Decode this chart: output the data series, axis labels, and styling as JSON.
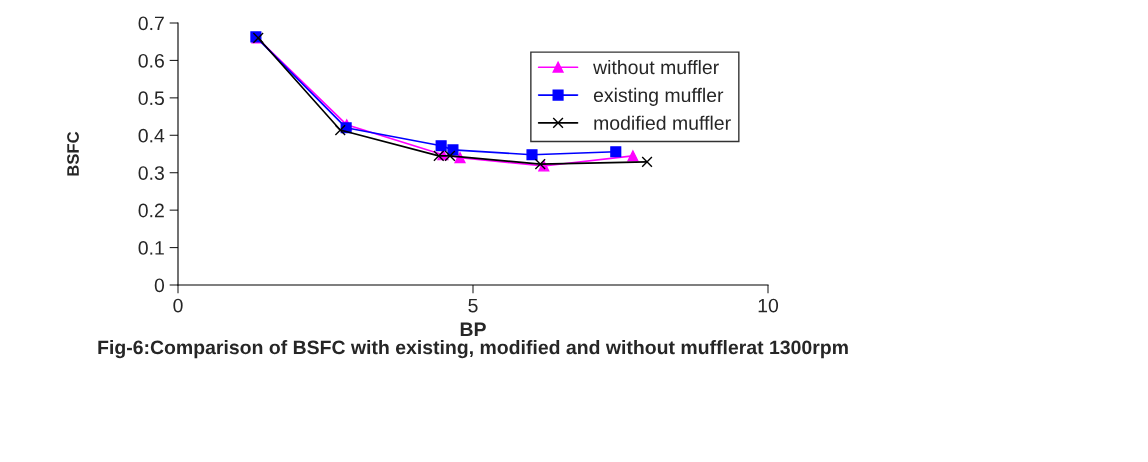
{
  "chart_data": {
    "type": "line",
    "title": "Fig-6:Comparison of BSFC with existing, modified and without mufflerat 1300rpm",
    "xlabel": "BP",
    "ylabel": "BSFC",
    "xlim": [
      0,
      10
    ],
    "xticks": [
      0,
      5,
      10
    ],
    "ylim": [
      0,
      0.7
    ],
    "yticks": [
      0,
      0.1,
      0.2,
      0.3,
      0.4,
      0.5,
      0.6,
      0.7
    ],
    "grid": false,
    "legend": "top right",
    "series": [
      {
        "name": "without muffler",
        "color": "#ff00ff",
        "marker": "triangle",
        "x": [
          1.34,
          2.86,
          4.49,
          4.78,
          6.2,
          7.71
        ],
        "values": [
          0.66,
          0.428,
          0.348,
          0.34,
          0.318,
          0.345
        ]
      },
      {
        "name": "existing muffler",
        "color": "#0000ff",
        "marker": "square",
        "x": [
          1.32,
          2.85,
          4.46,
          4.66,
          6.0,
          7.42
        ],
        "values": [
          0.663,
          0.42,
          0.372,
          0.361,
          0.348,
          0.356
        ]
      },
      {
        "name": "modified muffler",
        "color": "#000000",
        "marker": "cross",
        "x": [
          1.36,
          2.75,
          4.42,
          4.61,
          6.14,
          7.95
        ],
        "values": [
          0.66,
          0.414,
          0.345,
          0.345,
          0.323,
          0.329
        ]
      }
    ]
  }
}
